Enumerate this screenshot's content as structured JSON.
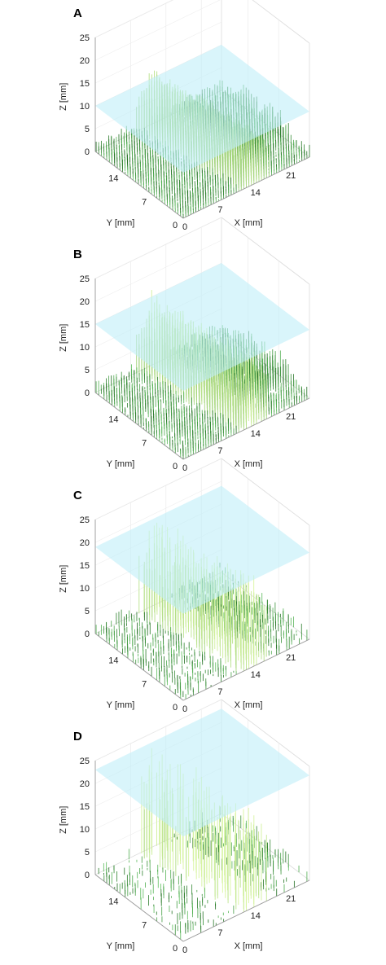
{
  "chart_data": [
    {
      "panel": "A",
      "type": "surface3d",
      "xlabel": "X [mm]",
      "ylabel": "Y [mm]",
      "zlabel": "Z [mm]",
      "x_ticks": [
        "0",
        "7",
        "14",
        "21"
      ],
      "y_ticks": [
        "0",
        "7",
        "14"
      ],
      "z_ticks": [
        "0",
        "5",
        "10",
        "15",
        "20",
        "25"
      ],
      "zlim": [
        0,
        25
      ],
      "plane_z": 10,
      "ridge_peak_z": 13,
      "density": 1.0,
      "colors": {
        "base": "#2e8b2e",
        "ridge": "#d8f5a0",
        "plane": "#bfeff8"
      }
    },
    {
      "panel": "B",
      "type": "surface3d",
      "xlabel": "X [mm]",
      "ylabel": "Y [mm]",
      "zlabel": "Z [mm]",
      "x_ticks": [
        "0",
        "7",
        "14",
        "21"
      ],
      "y_ticks": [
        "0",
        "7",
        "14"
      ],
      "z_ticks": [
        "0",
        "5",
        "10",
        "15",
        "20",
        "25"
      ],
      "zlim": [
        0,
        25
      ],
      "plane_z": 15,
      "ridge_peak_z": 17,
      "density": 0.85,
      "colors": {
        "base": "#2e8b2e",
        "ridge": "#d8f5a0",
        "plane": "#bfeff8"
      }
    },
    {
      "panel": "C",
      "type": "surface3d",
      "xlabel": "X [mm]",
      "ylabel": "Y [mm]",
      "zlabel": "Z [mm]",
      "x_ticks": [
        "0",
        "7",
        "14",
        "21"
      ],
      "y_ticks": [
        "0",
        "7",
        "14"
      ],
      "z_ticks": [
        "0",
        "5",
        "10",
        "15",
        "20",
        "25"
      ],
      "zlim": [
        0,
        25
      ],
      "plane_z": 19,
      "ridge_peak_z": 21,
      "density": 0.45,
      "colors": {
        "base": "#2e8b2e",
        "ridge": "#d8f5a0",
        "plane": "#bfeff8"
      }
    },
    {
      "panel": "D",
      "type": "surface3d",
      "xlabel": "X [mm]",
      "ylabel": "Y [mm]",
      "zlabel": "Z [mm]",
      "x_ticks": [
        "0",
        "7",
        "14",
        "21"
      ],
      "y_ticks": [
        "0",
        "7",
        "14"
      ],
      "z_ticks": [
        "0",
        "5",
        "10",
        "15",
        "20",
        "25"
      ],
      "zlim": [
        0,
        25
      ],
      "plane_z": 23,
      "ridge_peak_z": 24,
      "density": 0.25,
      "colors": {
        "base": "#2e8b2e",
        "ridge": "#d8f5a0",
        "plane": "#bfeff8"
      }
    }
  ]
}
